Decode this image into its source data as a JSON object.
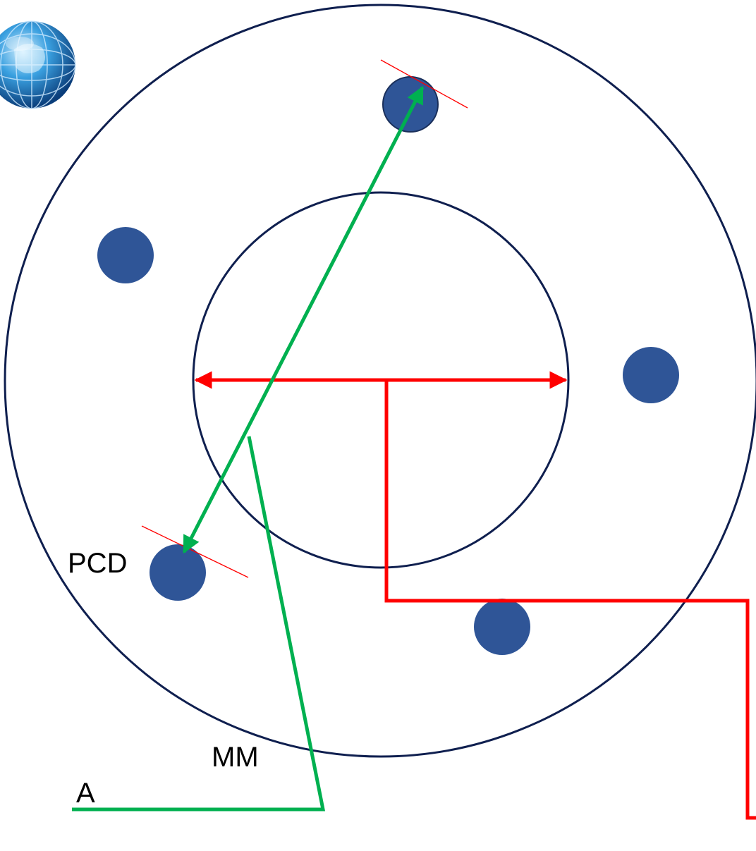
{
  "labels": {
    "pcd": "PCD",
    "a": "A",
    "mm": "MM"
  },
  "colors": {
    "outline": "#0f1f4f",
    "bolt_hole": "#2f5597",
    "pcd_indicator": "#00b050",
    "center_bore_indicator": "#ff0000",
    "tangent_mark": "#ff0000"
  },
  "icons": {
    "logo": "globe-icon"
  }
}
